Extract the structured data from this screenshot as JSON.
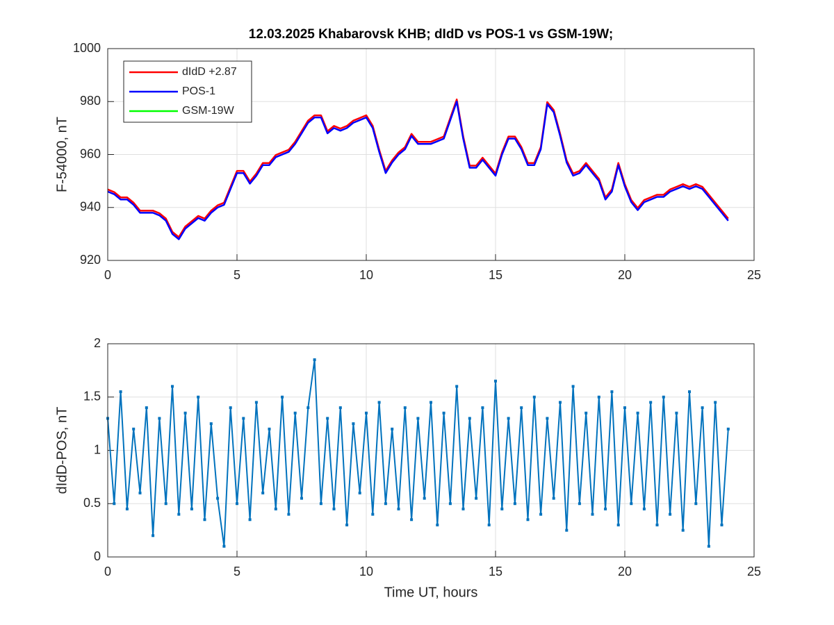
{
  "chart_data": [
    {
      "type": "line",
      "title": "12.03.2025  Khabarovsk KHB; dIdD vs POS-1 vs GSM-19W;",
      "ylabel": "F-54000, nT",
      "x": [
        0,
        0.25,
        0.5,
        0.75,
        1,
        1.25,
        1.5,
        1.75,
        2,
        2.25,
        2.5,
        2.75,
        3,
        3.25,
        3.5,
        3.75,
        4,
        4.25,
        4.5,
        4.75,
        5,
        5.25,
        5.5,
        5.75,
        6,
        6.25,
        6.5,
        6.75,
        7,
        7.25,
        7.5,
        7.75,
        8,
        8.25,
        8.5,
        8.75,
        9,
        9.25,
        9.5,
        9.75,
        10,
        10.25,
        10.5,
        10.75,
        11,
        11.25,
        11.5,
        11.75,
        12,
        12.25,
        12.5,
        12.75,
        13,
        13.25,
        13.5,
        13.75,
        14,
        14.25,
        14.5,
        14.75,
        15,
        15.25,
        15.5,
        15.75,
        16,
        16.25,
        16.5,
        16.75,
        17,
        17.25,
        17.5,
        17.75,
        18,
        18.25,
        18.5,
        18.75,
        19,
        19.25,
        19.5,
        19.75,
        20,
        20.25,
        20.5,
        20.75,
        21,
        21.25,
        21.5,
        21.75,
        22,
        22.25,
        22.5,
        22.75,
        23,
        23.25,
        23.5,
        23.75,
        24
      ],
      "series": [
        {
          "name": "dIdD +2.87",
          "color": "#ff0000",
          "values": [
            946.8,
            945.8,
            943.8,
            943.8,
            941.8,
            938.8,
            938.8,
            938.8,
            937.8,
            935.8,
            930.8,
            928.8,
            932.8,
            934.8,
            936.8,
            935.8,
            938.8,
            940.8,
            941.8,
            947.8,
            953.8,
            953.8,
            949.8,
            952.8,
            956.8,
            956.8,
            959.8,
            960.8,
            961.8,
            964.8,
            968.8,
            972.8,
            974.8,
            974.8,
            968.8,
            970.8,
            969.8,
            970.8,
            972.8,
            973.8,
            974.8,
            970.8,
            961.8,
            953.8,
            957.8,
            960.8,
            962.8,
            967.8,
            964.8,
            964.8,
            964.8,
            965.8,
            966.8,
            973.8,
            980.8,
            966.8,
            955.8,
            955.8,
            958.8,
            955.8,
            952.8,
            960.8,
            966.8,
            966.8,
            962.8,
            956.8,
            956.8,
            962.8,
            979.8,
            976.8,
            967.8,
            957.8,
            952.8,
            953.8,
            956.8,
            953.8,
            950.8,
            943.8,
            946.8,
            956.8,
            948.8,
            942.8,
            939.8,
            942.8,
            943.8,
            944.8,
            944.8,
            946.8,
            947.8,
            948.8,
            947.8,
            948.8,
            947.8,
            944.8,
            941.8,
            938.8,
            935.8
          ]
        },
        {
          "name": "POS-1",
          "color": "#0000ff",
          "values": [
            946,
            945,
            943,
            943,
            941,
            938,
            938,
            938,
            937,
            935,
            930,
            928,
            932,
            934,
            936,
            935,
            938,
            940,
            941,
            947,
            953,
            953,
            949,
            952,
            956,
            956,
            959,
            960,
            961,
            964,
            968,
            972,
            974,
            974,
            968,
            970,
            969,
            970,
            972,
            973,
            974,
            970,
            961,
            953,
            957,
            960,
            962,
            967,
            964,
            964,
            964,
            965,
            966,
            973,
            980,
            966,
            955,
            955,
            958,
            955,
            952,
            960,
            966,
            966,
            962,
            956,
            956,
            962,
            979,
            976,
            967,
            957,
            952,
            953,
            956,
            953,
            950,
            943,
            946,
            956,
            948,
            942,
            939,
            942,
            943,
            944,
            944,
            946,
            947,
            948,
            947,
            948,
            947,
            944,
            941,
            938,
            935
          ]
        },
        {
          "name": "GSM-19W",
          "color": "#00ff00",
          "values": [
            null,
            null,
            null,
            null,
            null,
            null,
            null,
            null,
            null,
            null,
            null,
            null,
            null,
            null,
            null,
            null,
            null,
            null,
            null,
            null,
            null,
            null,
            null,
            null,
            null,
            null,
            null,
            null,
            null,
            null,
            null,
            null,
            null,
            null,
            null,
            null,
            null,
            null,
            null,
            null,
            null,
            null,
            null,
            null,
            null,
            null,
            null,
            null,
            null,
            null,
            null,
            null,
            null,
            null,
            null,
            null,
            null,
            null,
            null,
            null,
            null,
            null,
            null,
            null,
            null,
            null,
            null,
            null,
            null,
            null,
            null,
            null,
            null,
            null,
            null,
            null,
            null,
            null,
            null,
            null,
            null,
            null,
            null,
            null,
            null,
            null,
            null,
            null,
            null,
            null,
            null,
            null,
            null,
            null,
            null,
            null,
            null
          ]
        }
      ],
      "xlim": [
        0,
        25
      ],
      "xticks": [
        0,
        5,
        10,
        15,
        20,
        25
      ],
      "ylim": [
        920,
        1000
      ],
      "yticks": [
        920,
        940,
        960,
        980,
        1000
      ],
      "grid": true,
      "legend": "upper left"
    },
    {
      "type": "line",
      "xlabel": "Time UT, hours",
      "ylabel": "dIdD-POS, nT",
      "x": [
        0,
        0.25,
        0.5,
        0.75,
        1,
        1.25,
        1.5,
        1.75,
        2,
        2.25,
        2.5,
        2.75,
        3,
        3.25,
        3.5,
        3.75,
        4,
        4.25,
        4.5,
        4.75,
        5,
        5.25,
        5.5,
        5.75,
        6,
        6.25,
        6.5,
        6.75,
        7,
        7.25,
        7.5,
        7.75,
        8,
        8.25,
        8.5,
        8.75,
        9,
        9.25,
        9.5,
        9.75,
        10,
        10.25,
        10.5,
        10.75,
        11,
        11.25,
        11.5,
        11.75,
        12,
        12.25,
        12.5,
        12.75,
        13,
        13.25,
        13.5,
        13.75,
        14,
        14.25,
        14.5,
        14.75,
        15,
        15.25,
        15.5,
        15.75,
        16,
        16.25,
        16.5,
        16.75,
        17,
        17.25,
        17.5,
        17.75,
        18,
        18.25,
        18.5,
        18.75,
        19,
        19.25,
        19.5,
        19.75,
        20,
        20.25,
        20.5,
        20.75,
        21,
        21.25,
        21.5,
        21.75,
        22,
        22.25,
        22.5,
        22.75,
        23,
        23.25,
        23.5,
        23.75,
        24
      ],
      "series": [
        {
          "name": "dIdD-POS",
          "color": "#0072bd",
          "values": [
            1.3,
            0.5,
            1.55,
            0.45,
            1.2,
            0.6,
            1.4,
            0.2,
            1.3,
            0.5,
            1.6,
            0.4,
            1.35,
            0.45,
            1.5,
            0.35,
            1.25,
            0.55,
            0.1,
            1.4,
            0.5,
            1.3,
            0.35,
            1.45,
            0.6,
            1.2,
            0.45,
            1.5,
            0.4,
            1.35,
            0.55,
            1.4,
            1.85,
            0.5,
            1.3,
            0.45,
            1.4,
            0.3,
            1.25,
            0.6,
            1.35,
            0.4,
            1.45,
            0.5,
            1.2,
            0.45,
            1.4,
            0.35,
            1.3,
            0.55,
            1.45,
            0.3,
            1.35,
            0.5,
            1.6,
            0.45,
            1.3,
            0.55,
            1.4,
            0.3,
            1.65,
            0.45,
            1.3,
            0.5,
            1.4,
            0.35,
            1.5,
            0.4,
            1.3,
            0.55,
            1.45,
            0.25,
            1.6,
            0.5,
            1.35,
            0.4,
            1.5,
            0.45,
            1.55,
            0.3,
            1.4,
            0.5,
            1.35,
            0.45,
            1.45,
            0.3,
            1.5,
            0.4,
            1.35,
            0.25,
            1.55,
            0.5,
            1.4,
            0.1,
            1.45,
            0.3,
            1.2
          ]
        }
      ],
      "xlim": [
        0,
        25
      ],
      "xticks": [
        0,
        5,
        10,
        15,
        20,
        25
      ],
      "ylim": [
        0,
        2
      ],
      "yticks": [
        0,
        0.5,
        1,
        1.5,
        2
      ],
      "grid": true,
      "markers": true
    }
  ]
}
